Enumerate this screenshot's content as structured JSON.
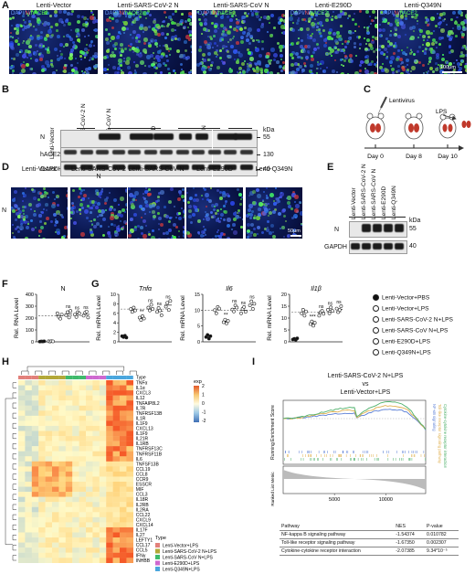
{
  "panels": {
    "A": {
      "label": "A",
      "columns": [
        "Lenti-Vector",
        "Lenti-SARS-CoV-2 N",
        "Lenti-SARS-CoV N",
        "Lenti-E290D",
        "Lenti-Q349N"
      ],
      "channel_prefix": "DAPI/",
      "channel_n": "N",
      "channel_sep": "/",
      "channel_hace2": "hACE2",
      "scale_bar": "100μm"
    },
    "B": {
      "label": "B",
      "lanes": [
        "Lenti-Vector",
        "Lenti-SARS-CoV-2 N",
        "Lenti-SARS-CoV N",
        "Lenti-E290D",
        "Lenti-Q349N"
      ],
      "rows": [
        "N",
        "hACE2",
        "GAPDH"
      ],
      "kda_title": "kDa",
      "kda": [
        "55",
        "130",
        "40"
      ]
    },
    "C": {
      "label": "C",
      "virus": "Lentivirus",
      "lps": "LPS",
      "days": [
        "Day 0",
        "Day 8",
        "Day 10"
      ]
    },
    "D": {
      "label": "D",
      "columns": [
        "Lenti-Vector",
        "Lenti-SARS-CoV-2 N",
        "Lenti-SARS-CoV N",
        "Lenti-E290D",
        "Lenti-Q349N"
      ],
      "row_label": "N",
      "scale_bar": "50μm"
    },
    "E": {
      "label": "E",
      "lanes": [
        "Lenti-Vector",
        "Lenti-SARS-CoV-2 N",
        "Lenti-SARS-CoV N",
        "Lenti-E290D",
        "Lenti-Q349N"
      ],
      "rows": [
        "N",
        "GAPDH"
      ],
      "kda_title": "kDa",
      "kda": [
        "55",
        "40"
      ]
    },
    "F": {
      "label": "F"
    },
    "G": {
      "label": "G",
      "legend": [
        "Lenti-Vector+PBS",
        "Lenti-Vector+LPS",
        "Lenti-SARS-CoV-2 N+LPS",
        "Lenti-SARS-CoV N+LPS",
        "Lenti-E290D+LPS",
        "Lenti-Q349N+LPS"
      ]
    },
    "H": {
      "label": "H",
      "type_label": "Type",
      "exp_label": "exp",
      "scale_ticks": [
        "2",
        "1",
        "0",
        "-1",
        "-2"
      ],
      "genes": [
        "TNFα",
        "IL1α",
        "CXCL3",
        "IL12",
        "TNFAIP8L2",
        "IL7R",
        "TNFRSF13B",
        "IL1R",
        "IL1F9",
        "CXCL13",
        "IL1F9",
        "IL21R",
        "IL1RB",
        "TNFRSF13C",
        "TNFRSF11B",
        "IL6",
        "TNFSF13B",
        "CCL19",
        "CCL8",
        "CCR9",
        "ESSCR",
        "MIF",
        "CCL3",
        "IL18R",
        "IL2RB",
        "IL2RA",
        "CCL22",
        "CXCL9",
        "CXCL14",
        "IL17F",
        "IL27",
        "LEFTY1",
        "CCL17",
        "CCL5",
        "IFNγ",
        "INHBB"
      ],
      "type_legend_title": "Type",
      "type_legend": [
        "Lenti-Vector+LPS",
        "Lenti-SARS-CoV-2 N+LPS",
        "Lenti-SARS-CoV N+LPS",
        "Lenti-E290D+LPS",
        "Lenti-Q349N+LPS"
      ],
      "type_colors": [
        "#e2807a",
        "#b3a838",
        "#3fba6b",
        "#cf68cf",
        "#4aa6dd"
      ]
    },
    "I": {
      "label": "I",
      "title_line1": "Lenti-SARS-CoV-2 N+LPS",
      "title_vs": "vs",
      "title_line2": "Lenti-Vector+LPS",
      "ylabel": "Running Enrichment Score",
      "ylabel2": "Ranked List Metric",
      "xticks": [
        "5000",
        "10000"
      ],
      "table_headers": [
        "Pathway",
        "NES",
        "P-value"
      ],
      "table_rows": [
        [
          "NF-kappa B signaling pathway",
          "-1.54374",
          "0.010782"
        ],
        [
          "Toll-like receptor signaling pathway",
          "-1.67350",
          "0.002307"
        ],
        [
          "Cytokine-cytokine receptor interaction",
          "-2.07385",
          "9.34*10⁻⁵"
        ]
      ],
      "side_labels": [
        "NF-κB signaling",
        "Toll-like receptor signaling pathway",
        "Cytokine-cytokine receptor interaction"
      ]
    }
  },
  "chart_data": [
    {
      "type": "scatter",
      "panel": "F",
      "title": "N",
      "ylabel": "Rel. RNA Level",
      "ylim": [
        0,
        400
      ],
      "yticks": [
        0,
        100,
        200,
        300,
        400
      ],
      "groups": [
        "Lenti-Vector+PBS",
        "Lenti-Vector+LPS",
        "Lenti-SARS-CoV-2 N+LPS",
        "Lenti-SARS-CoV N+LPS",
        "Lenti-E290D+LPS",
        "Lenti-Q349N+LPS"
      ],
      "points": [
        [
          2,
          4,
          3,
          5
        ],
        [
          5,
          3,
          6,
          4
        ],
        [
          240,
          210,
          195,
          230
        ],
        [
          225,
          250,
          205,
          260
        ],
        [
          230,
          210,
          250,
          240
        ],
        [
          220,
          245,
          255,
          205
        ]
      ],
      "annotations": [
        "",
        "",
        "",
        "ns",
        "ns",
        "ns"
      ],
      "dashed": 220
    },
    {
      "type": "scatter",
      "panel": "G",
      "title": "Tnfα",
      "ylabel": "Rel. mRNA Level",
      "ylim": [
        0,
        10
      ],
      "yticks": [
        0,
        2,
        4,
        6,
        8,
        10
      ],
      "groups": [
        "Lenti-Vector+PBS",
        "Lenti-Vector+LPS",
        "Lenti-SARS-CoV-2 N+LPS",
        "Lenti-SARS-CoV N+LPS",
        "Lenti-E290D+LPS",
        "Lenti-Q349N+LPS"
      ],
      "points": [
        [
          1.2,
          1.0,
          1.3,
          0.9
        ],
        [
          6.9,
          6.3,
          7.2,
          6.6
        ],
        [
          5.1,
          4.6,
          5.4,
          4.9
        ],
        [
          7.2,
          6.6,
          7.8,
          6.9
        ],
        [
          6.3,
          7.1,
          6.6,
          5.6
        ],
        [
          7.4,
          8.2,
          6.7,
          8.6
        ]
      ],
      "annotations": [
        "",
        "",
        "**",
        "ns",
        "ns",
        "ns"
      ],
      "dashed": 6.9
    },
    {
      "type": "scatter",
      "panel": "G",
      "title": "Il6",
      "ylabel": "Rel. mRNA Level",
      "ylim": [
        0,
        15
      ],
      "yticks": [
        0,
        5,
        10,
        15
      ],
      "groups": [
        "Lenti-Vector+PBS",
        "Lenti-Vector+LPS",
        "Lenti-SARS-CoV-2 N+LPS",
        "Lenti-SARS-CoV N+LPS",
        "Lenti-E290D+LPS",
        "Lenti-Q349N+LPS"
      ],
      "points": [
        [
          1.5,
          2.2,
          1.0,
          1.8
        ],
        [
          10.0,
          9.0,
          11.0,
          10.5
        ],
        [
          6.2,
          7.0,
          5.8,
          6.6
        ],
        [
          10.2,
          9.6,
          11.5,
          10.8
        ],
        [
          9.0,
          10.4,
          11.0,
          9.5
        ],
        [
          11.5,
          12.8,
          10.4,
          12.0
        ]
      ],
      "annotations": [
        "",
        "",
        "**",
        "ns",
        "ns",
        "ns"
      ],
      "dashed": 10
    },
    {
      "type": "scatter",
      "panel": "G",
      "title": "Il1β",
      "ylabel": "Rel. mRNA Level",
      "ylim": [
        0,
        20
      ],
      "yticks": [
        0,
        5,
        10,
        15,
        20
      ],
      "groups": [
        "Lenti-Vector+PBS",
        "Lenti-Vector+LPS",
        "Lenti-SARS-CoV-2 N+LPS",
        "Lenti-SARS-CoV N+LPS",
        "Lenti-E290D+LPS",
        "Lenti-Q349N+LPS"
      ],
      "points": [
        [
          1.0,
          1.3,
          0.8,
          1.5
        ],
        [
          12.0,
          13.5,
          11.0,
          12.8
        ],
        [
          7.5,
          8.6,
          6.8,
          8.0
        ],
        [
          11.0,
          12.5,
          13.0,
          11.8
        ],
        [
          13.5,
          12.0,
          14.5,
          13.0
        ],
        [
          14.0,
          12.5,
          13.4,
          15.0
        ]
      ],
      "annotations": [
        "",
        "",
        "***",
        "ns",
        "ns",
        "ns"
      ],
      "dashed": 12.5
    }
  ]
}
